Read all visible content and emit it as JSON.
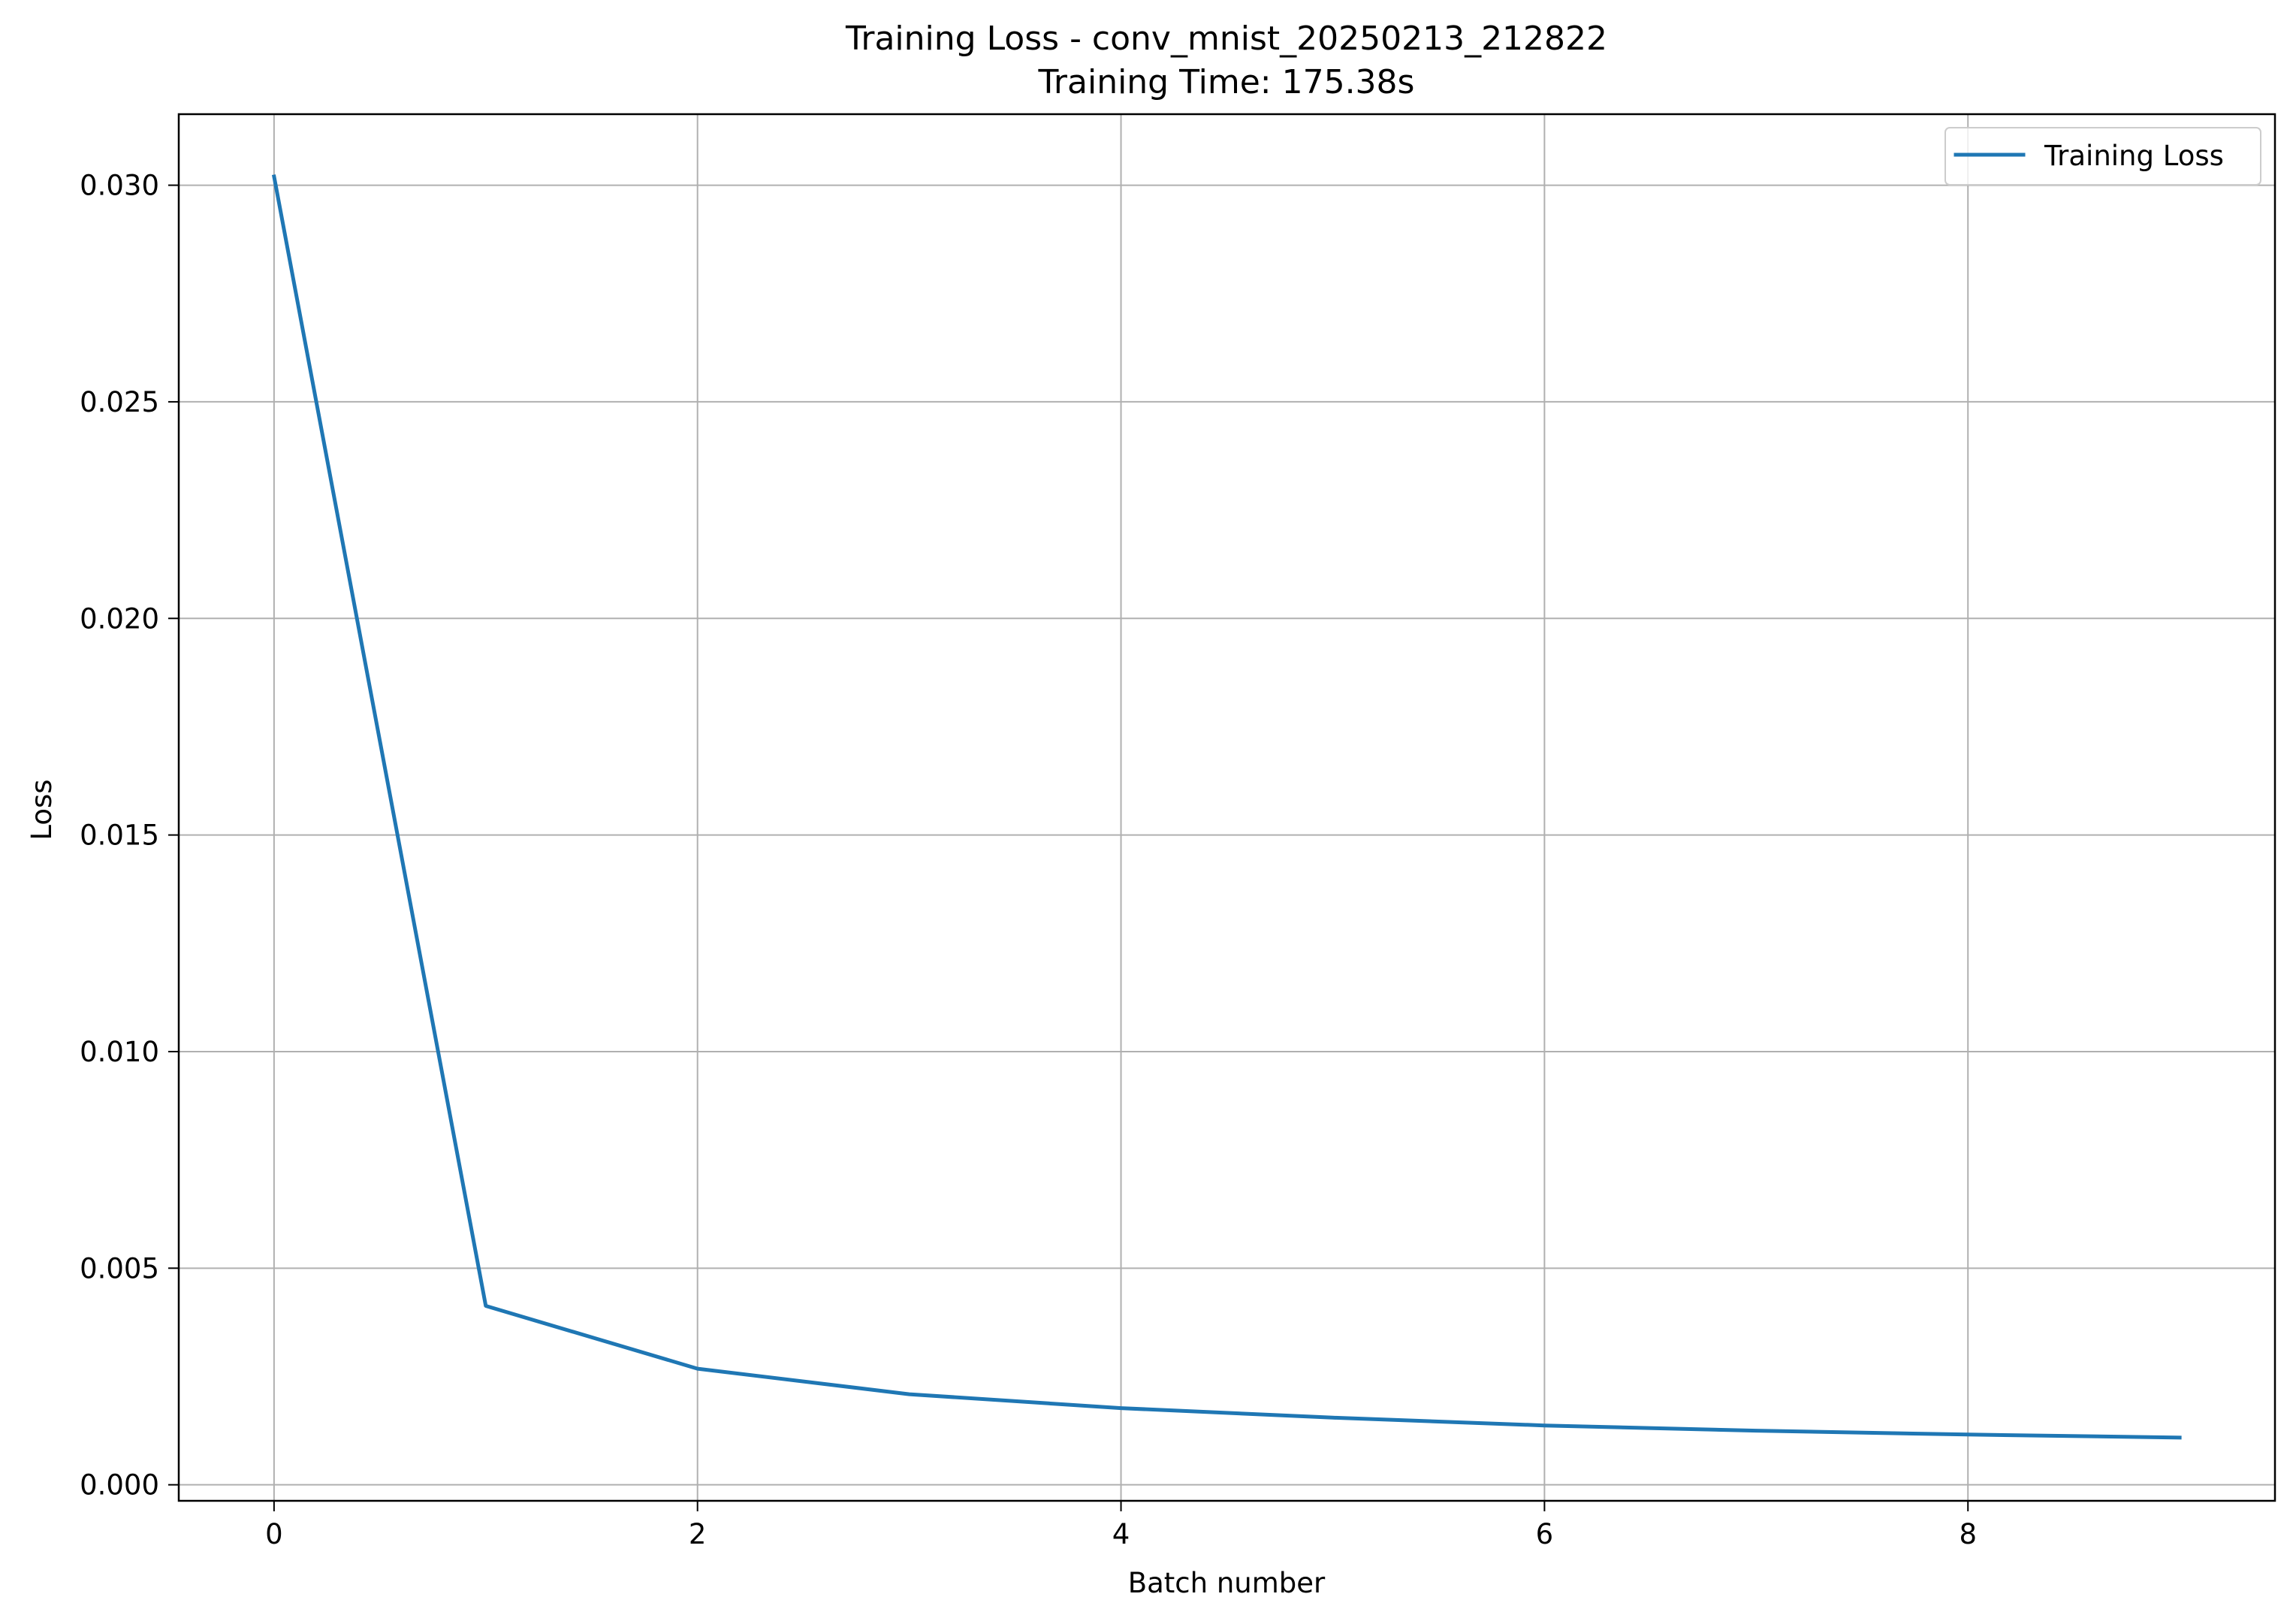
{
  "chart_data": {
    "type": "line",
    "title": "Training Loss - conv_mnist_20250213_212822",
    "subtitle": "Training Time: 175.38s",
    "xlabel": "Batch number",
    "ylabel": "Loss",
    "x": [
      0,
      1,
      2,
      3,
      4,
      5,
      6,
      7,
      8,
      9
    ],
    "series": [
      {
        "name": "Training Loss",
        "values": [
          0.0302,
          0.00413,
          0.00268,
          0.00209,
          0.00177,
          0.00155,
          0.00137,
          0.00125,
          0.00116,
          0.00109
        ],
        "color": "#1f77b4"
      }
    ],
    "xlim": [
      -0.45,
      9.45
    ],
    "ylim": [
      -0.00037,
      0.03164
    ],
    "xticks": [
      0,
      2,
      4,
      6,
      8
    ],
    "xtick_labels": [
      "0",
      "2",
      "4",
      "6",
      "8"
    ],
    "yticks": [
      0.0,
      0.005,
      0.01,
      0.015,
      0.02,
      0.025,
      0.03
    ],
    "ytick_labels": [
      "0.000",
      "0.005",
      "0.010",
      "0.015",
      "0.020",
      "0.025",
      "0.030"
    ],
    "grid": true,
    "legend_position": "top-right"
  }
}
